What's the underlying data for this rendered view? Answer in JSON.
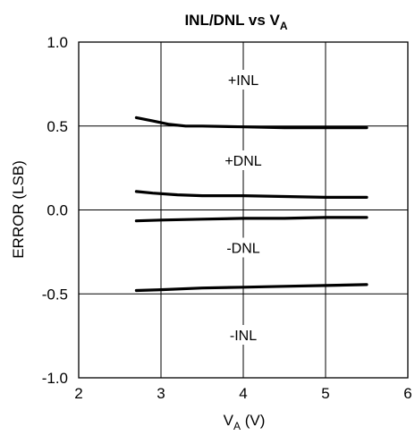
{
  "chart_data": {
    "type": "line",
    "title": {
      "main": "INL/DNL vs V",
      "sub": "A"
    },
    "xlabel": {
      "main": "V",
      "sub": "A",
      "suffix": " (V)"
    },
    "ylabel": "ERROR (LSB)",
    "xlim": [
      2,
      6
    ],
    "ylim": [
      -1.0,
      1.0
    ],
    "xticks": [
      "2",
      "3",
      "4",
      "5",
      "6"
    ],
    "yticks": [
      "1.0",
      "0.5",
      "0.0",
      "-0.5",
      "-1.0"
    ],
    "xtick_values": [
      2,
      3,
      4,
      5,
      6
    ],
    "ytick_values": [
      1.0,
      0.5,
      0.0,
      -0.5,
      -1.0
    ],
    "grid": true,
    "series": [
      {
        "name": "+INL",
        "x": [
          2.7,
          2.9,
          3.1,
          3.3,
          3.5,
          4.0,
          4.5,
          5.0,
          5.5
        ],
        "y": [
          0.55,
          0.53,
          0.51,
          0.5,
          0.5,
          0.495,
          0.49,
          0.49,
          0.49
        ]
      },
      {
        "name": "+DNL",
        "x": [
          2.7,
          2.9,
          3.2,
          3.5,
          4.0,
          4.5,
          5.0,
          5.5
        ],
        "y": [
          0.11,
          0.1,
          0.09,
          0.085,
          0.085,
          0.08,
          0.075,
          0.075
        ]
      },
      {
        "name": "-DNL",
        "x": [
          2.7,
          3.0,
          3.5,
          4.0,
          4.5,
          5.0,
          5.5
        ],
        "y": [
          -0.065,
          -0.06,
          -0.055,
          -0.05,
          -0.05,
          -0.045,
          -0.045
        ]
      },
      {
        "name": "-INL",
        "x": [
          2.7,
          3.0,
          3.5,
          4.0,
          4.5,
          5.0,
          5.5
        ],
        "y": [
          -0.48,
          -0.475,
          -0.465,
          -0.46,
          -0.455,
          -0.45,
          -0.445
        ]
      }
    ],
    "annotations": [
      {
        "text": "+INL",
        "x": 4.0,
        "y": 0.76
      },
      {
        "text": "+DNL",
        "x": 4.0,
        "y": 0.28
      },
      {
        "text": "-DNL",
        "x": 4.0,
        "y": -0.24
      },
      {
        "text": "-INL",
        "x": 4.0,
        "y": -0.76
      }
    ]
  }
}
